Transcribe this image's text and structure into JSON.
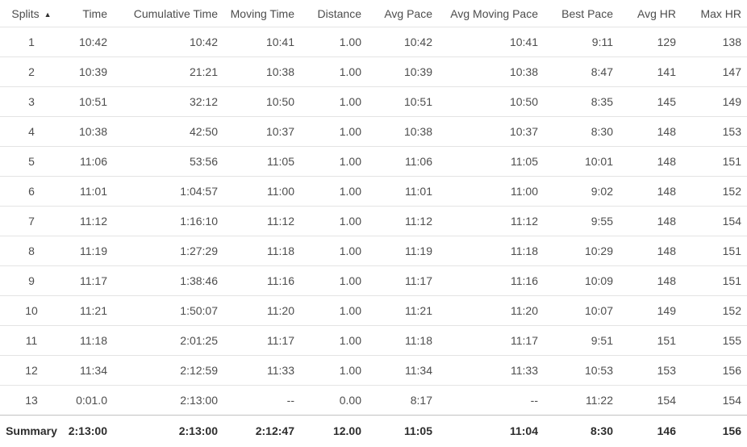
{
  "table": {
    "sort_icon": "▲",
    "sorted_column": "splits",
    "sort_direction": "asc",
    "columns": [
      {
        "key": "splits",
        "label": "Splits",
        "sorted": true
      },
      {
        "key": "time",
        "label": "Time"
      },
      {
        "key": "cumulative_time",
        "label": "Cumulative Time"
      },
      {
        "key": "moving_time",
        "label": "Moving Time"
      },
      {
        "key": "distance",
        "label": "Distance"
      },
      {
        "key": "avg_pace",
        "label": "Avg Pace"
      },
      {
        "key": "avg_moving_pace",
        "label": "Avg Moving Pace"
      },
      {
        "key": "best_pace",
        "label": "Best Pace"
      },
      {
        "key": "avg_hr",
        "label": "Avg HR"
      },
      {
        "key": "max_hr",
        "label": "Max HR"
      }
    ],
    "rows": [
      [
        "1",
        "10:42",
        "10:42",
        "10:41",
        "1.00",
        "10:42",
        "10:41",
        "9:11",
        "129",
        "138"
      ],
      [
        "2",
        "10:39",
        "21:21",
        "10:38",
        "1.00",
        "10:39",
        "10:38",
        "8:47",
        "141",
        "147"
      ],
      [
        "3",
        "10:51",
        "32:12",
        "10:50",
        "1.00",
        "10:51",
        "10:50",
        "8:35",
        "145",
        "149"
      ],
      [
        "4",
        "10:38",
        "42:50",
        "10:37",
        "1.00",
        "10:38",
        "10:37",
        "8:30",
        "148",
        "153"
      ],
      [
        "5",
        "11:06",
        "53:56",
        "11:05",
        "1.00",
        "11:06",
        "11:05",
        "10:01",
        "148",
        "151"
      ],
      [
        "6",
        "11:01",
        "1:04:57",
        "11:00",
        "1.00",
        "11:01",
        "11:00",
        "9:02",
        "148",
        "152"
      ],
      [
        "7",
        "11:12",
        "1:16:10",
        "11:12",
        "1.00",
        "11:12",
        "11:12",
        "9:55",
        "148",
        "154"
      ],
      [
        "8",
        "11:19",
        "1:27:29",
        "11:18",
        "1.00",
        "11:19",
        "11:18",
        "10:29",
        "148",
        "151"
      ],
      [
        "9",
        "11:17",
        "1:38:46",
        "11:16",
        "1.00",
        "11:17",
        "11:16",
        "10:09",
        "148",
        "151"
      ],
      [
        "10",
        "11:21",
        "1:50:07",
        "11:20",
        "1.00",
        "11:21",
        "11:20",
        "10:07",
        "149",
        "152"
      ],
      [
        "11",
        "11:18",
        "2:01:25",
        "11:17",
        "1.00",
        "11:18",
        "11:17",
        "9:51",
        "151",
        "155"
      ],
      [
        "12",
        "11:34",
        "2:12:59",
        "11:33",
        "1.00",
        "11:34",
        "11:33",
        "10:53",
        "153",
        "156"
      ],
      [
        "13",
        "0:01.0",
        "2:13:00",
        "--",
        "0.00",
        "8:17",
        "--",
        "11:22",
        "154",
        "154"
      ]
    ],
    "summary": [
      "Summary",
      "2:13:00",
      "2:13:00",
      "2:12:47",
      "12.00",
      "11:05",
      "11:04",
      "8:30",
      "146",
      "156"
    ]
  },
  "colors": {
    "text": "#4d4d4d",
    "border": "#e4e4e4",
    "summary_text": "#2d2d2d",
    "summary_border": "#c2c2c2",
    "background": "#ffffff",
    "sort_icon_color": "#2f2f2f"
  }
}
